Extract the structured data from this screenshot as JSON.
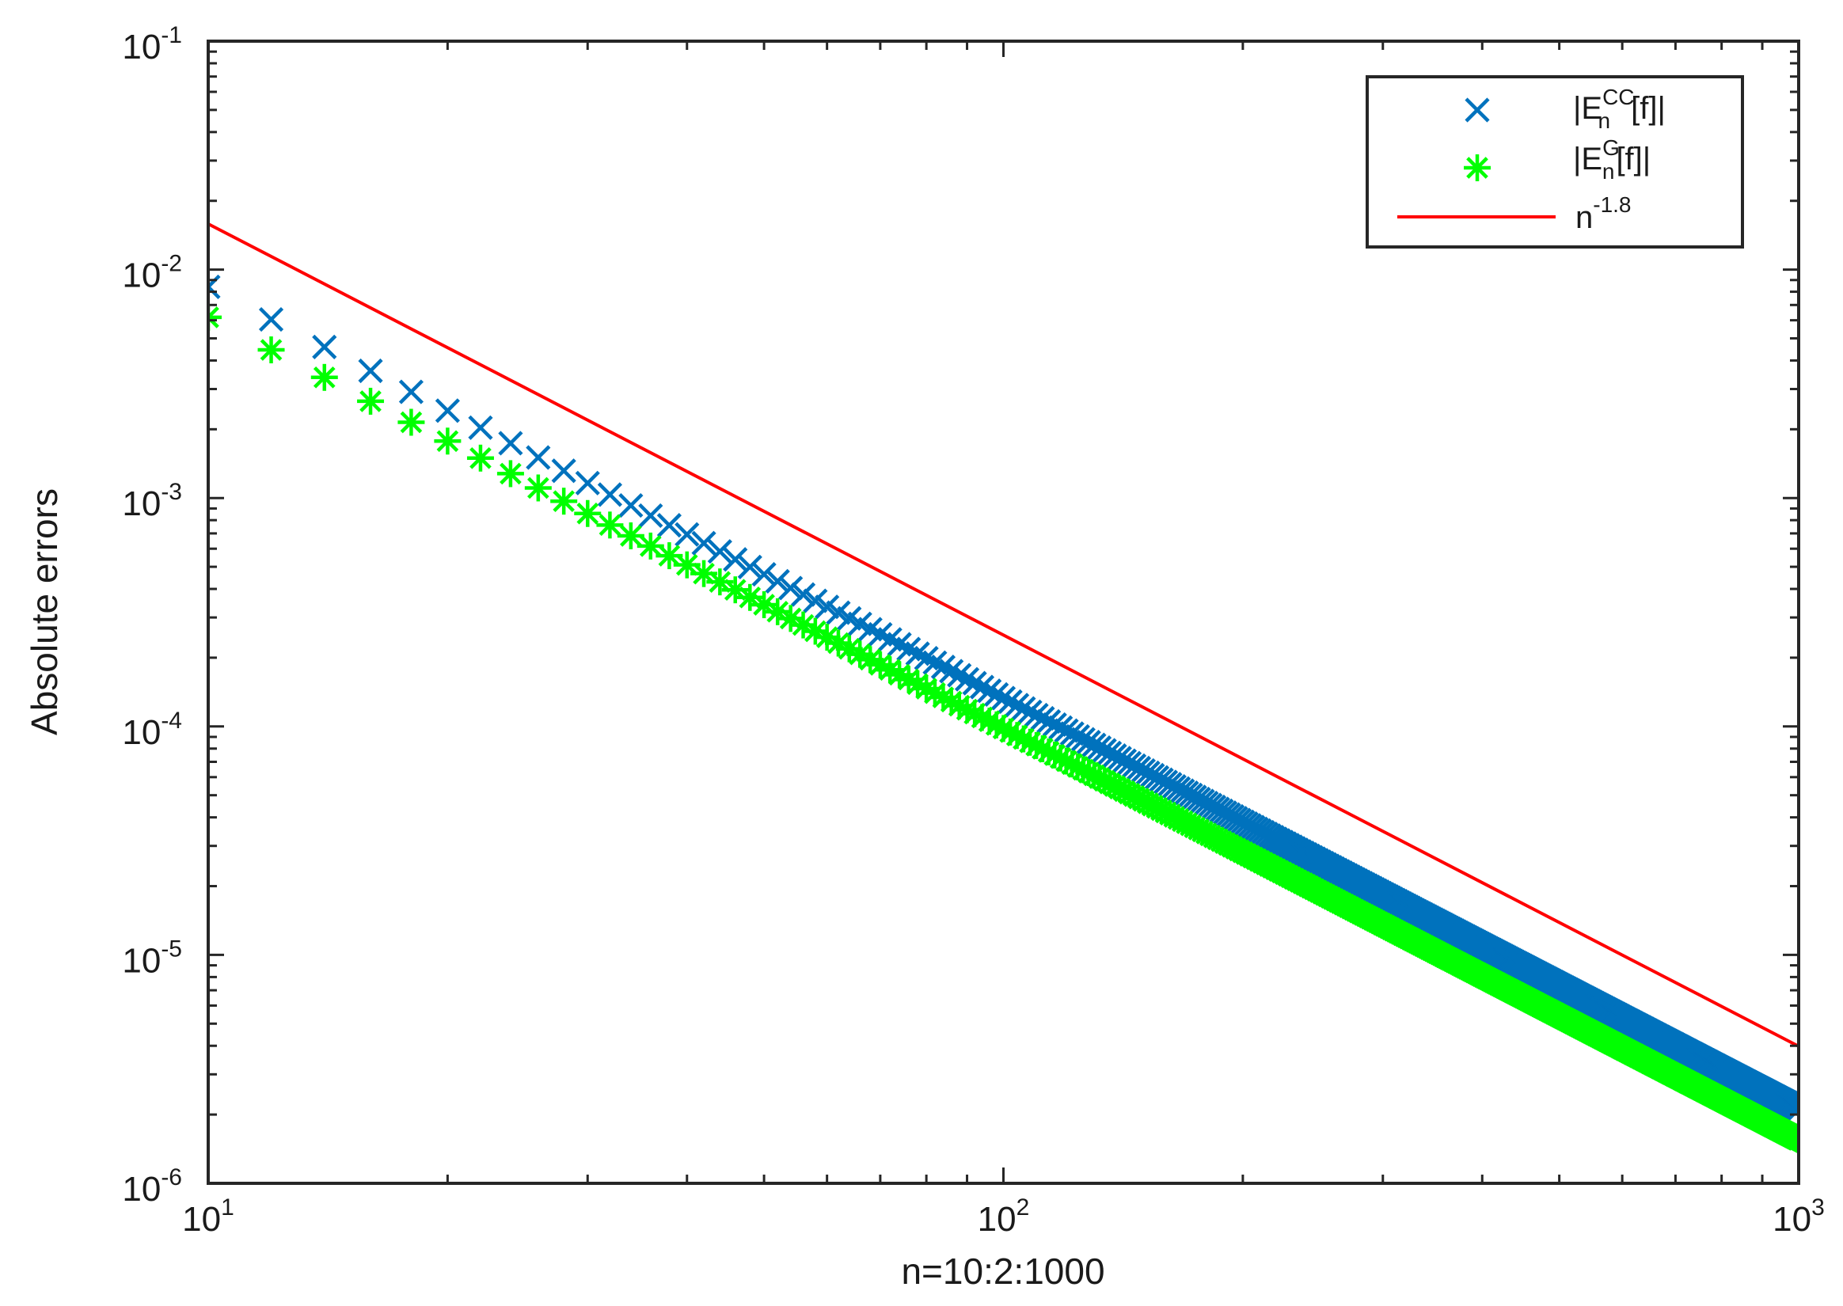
{
  "chart_data": {
    "type": "scatter",
    "xscale": "log",
    "yscale": "log",
    "xlim": [
      10,
      1000
    ],
    "ylim": [
      1e-06,
      0.1
    ],
    "xlabel": "n=10:2:1000",
    "ylabel": "Absolute errors",
    "grid": false,
    "legend_position": "top-right",
    "x_ticks": [
      {
        "base": "10",
        "exp": "1",
        "value": 10
      },
      {
        "base": "10",
        "exp": "2",
        "value": 100
      },
      {
        "base": "10",
        "exp": "3",
        "value": 1000
      }
    ],
    "y_ticks": [
      {
        "base": "10",
        "exp": "-6",
        "value": 1e-06
      },
      {
        "base": "10",
        "exp": "-5",
        "value": 1e-05
      },
      {
        "base": "10",
        "exp": "-4",
        "value": 0.0001
      },
      {
        "base": "10",
        "exp": "-3",
        "value": 0.001
      },
      {
        "base": "10",
        "exp": "-2",
        "value": 0.01
      },
      {
        "base": "10",
        "exp": "-1",
        "value": 0.1
      }
    ],
    "x": {
      "start": 10,
      "step": 2,
      "end": 1000
    },
    "series": [
      {
        "legend": {
          "prefix": "|E",
          "sup": "CC",
          "sub": "n",
          "suffix": "[f]|"
        },
        "marker": "x",
        "color": "#0072BD",
        "power_law": {
          "coefficient": 0.53,
          "exponent": -1.8
        },
        "values_sample": {
          "10": 0.0084,
          "100": 0.000134,
          "1000": 2.1e-06
        }
      },
      {
        "legend": {
          "prefix": "|E",
          "sup": "G",
          "sub": "n",
          "suffix": "[f]|"
        },
        "marker": "*",
        "color": "#00FF00",
        "power_law": {
          "coefficient": 0.39,
          "exponent": -1.8
        },
        "values_sample": {
          "10": 0.0062,
          "100": 9.85e-05,
          "1000": 1.55e-06
        }
      },
      {
        "legend": {
          "prefix": "n",
          "sup": "-1.8",
          "sub": "",
          "suffix": ""
        },
        "marker": "line",
        "color": "#FF0000",
        "power_law": {
          "coefficient": 1,
          "exponent": -1.8
        },
        "values_sample": {
          "10": 0.0158,
          "100": 0.000251,
          "1000": 3.98e-06
        }
      }
    ]
  }
}
